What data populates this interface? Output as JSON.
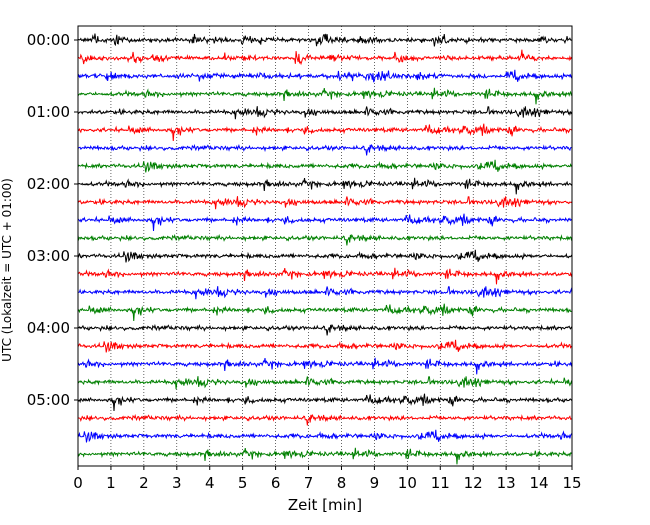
{
  "chart_data": {
    "type": "line",
    "title": "",
    "xlabel": "Zeit  [min]",
    "ylabel": "UTC (Lokalzeit = UTC + 01:00)",
    "xlim": [
      0,
      15
    ],
    "x_ticks": [
      "0",
      "1",
      "2",
      "3",
      "4",
      "5",
      "6",
      "7",
      "8",
      "9",
      "10",
      "11",
      "12",
      "13",
      "14",
      "15"
    ],
    "y_tick_labels": [
      "00:00",
      "01:00",
      "02:00",
      "03:00",
      "04:00",
      "05:00"
    ],
    "grid": "vertical dotted",
    "trace_interval_min": 15,
    "trace_count": 24,
    "trace_colors": [
      "#000000",
      "#ff0000",
      "#0000ff",
      "#008000"
    ],
    "traces_start": "00:00",
    "traces_end": "05:45"
  }
}
